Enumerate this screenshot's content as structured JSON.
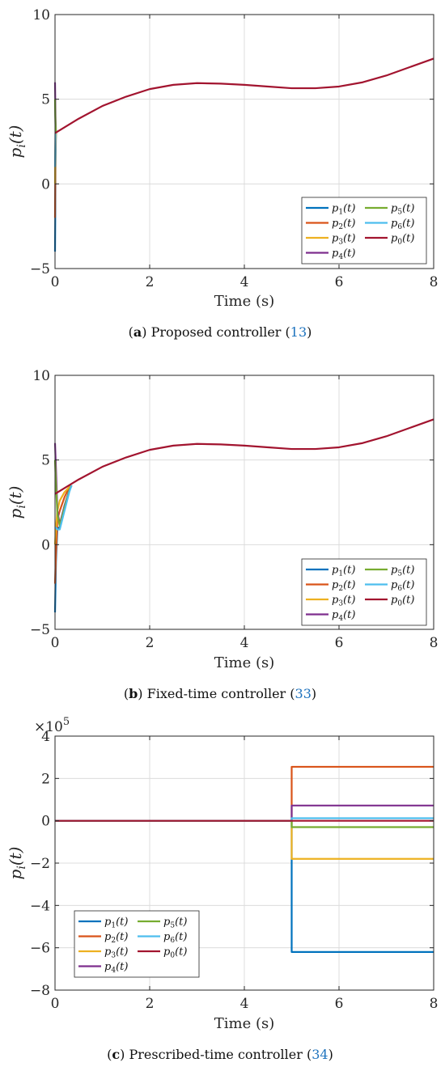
{
  "chart_data": [
    {
      "type": "line",
      "panel_label": "a",
      "caption": "Proposed controller",
      "caption_ref": "13",
      "xlabel": "Time (s)",
      "ylabel": "p_i(t)",
      "xlim": [
        0,
        8
      ],
      "ylim": [
        -5,
        10
      ],
      "xticks": [
        "0",
        "2",
        "4",
        "6",
        "8"
      ],
      "yticks": [
        "−5",
        "0",
        "5",
        "10"
      ],
      "y_exponent": "",
      "grid": true,
      "legend_position": "bottom-right",
      "series": [
        {
          "name": "p1(t)",
          "sub": "1",
          "color": "#0072BD",
          "x": [
            0,
            0.005,
            0.01,
            0.02
          ],
          "y": [
            -4,
            -2,
            1,
            3.05
          ]
        },
        {
          "name": "p2(t)",
          "sub": "2",
          "color": "#D95319",
          "x": [
            0,
            0.005,
            0.01,
            0.02
          ],
          "y": [
            -2,
            0,
            2,
            3.05
          ]
        },
        {
          "name": "p3(t)",
          "sub": "3",
          "color": "#EDB120",
          "x": [
            0,
            0.005,
            0.01,
            0.02
          ],
          "y": [
            0,
            1.5,
            2.5,
            3.05
          ]
        },
        {
          "name": "p4(t)",
          "sub": "4",
          "color": "#7E2F8E",
          "x": [
            0,
            0.005,
            0.01,
            0.02
          ],
          "y": [
            6,
            5,
            4,
            3.05
          ]
        },
        {
          "name": "p5(t)",
          "sub": "5",
          "color": "#77AC30",
          "x": [
            0,
            0.005,
            0.01,
            0.02
          ],
          "y": [
            5,
            4,
            3.5,
            3.05
          ]
        },
        {
          "name": "p6(t)",
          "sub": "6",
          "color": "#4DBEEE",
          "x": [
            0,
            0.005,
            0.01,
            0.02
          ],
          "y": [
            1,
            2,
            3,
            3.05
          ]
        },
        {
          "name": "p0(t)",
          "sub": "0",
          "color": "#A2142F",
          "x": [
            0,
            0.5,
            1,
            1.5,
            2,
            2.5,
            3,
            3.5,
            4,
            4.5,
            5,
            5.5,
            6,
            6.5,
            7,
            7.5,
            8
          ],
          "y": [
            3.0,
            3.85,
            4.6,
            5.15,
            5.6,
            5.85,
            5.95,
            5.92,
            5.85,
            5.75,
            5.65,
            5.65,
            5.75,
            6.0,
            6.4,
            6.9,
            7.4
          ]
        }
      ]
    },
    {
      "type": "line",
      "panel_label": "b",
      "caption": "Fixed-time controller",
      "caption_ref": "33",
      "xlabel": "Time (s)",
      "ylabel": "p_i(t)",
      "xlim": [
        0,
        8
      ],
      "ylim": [
        -5,
        10
      ],
      "xticks": [
        "0",
        "2",
        "4",
        "6",
        "8"
      ],
      "yticks": [
        "−5",
        "0",
        "5",
        "10"
      ],
      "y_exponent": "",
      "grid": true,
      "legend_position": "bottom-right",
      "series": [
        {
          "name": "p1(t)",
          "sub": "1",
          "color": "#0072BD",
          "x": [
            0,
            0.02,
            0.05,
            0.1,
            0.2,
            0.3,
            0.35
          ],
          "y": [
            -4,
            -1,
            1.0,
            1.0,
            2.2,
            3.2,
            3.5
          ]
        },
        {
          "name": "p2(t)",
          "sub": "2",
          "color": "#D95319",
          "x": [
            0,
            0.02,
            0.05,
            0.1,
            0.2,
            0.3,
            0.35
          ],
          "y": [
            -2.3,
            -0.5,
            1.5,
            2.0,
            2.8,
            3.4,
            3.5
          ]
        },
        {
          "name": "p3(t)",
          "sub": "3",
          "color": "#EDB120",
          "x": [
            0,
            0.02,
            0.05,
            0.1,
            0.2,
            0.3,
            0.35
          ],
          "y": [
            0,
            1.0,
            2.0,
            2.6,
            3.1,
            3.4,
            3.5
          ]
        },
        {
          "name": "p4(t)",
          "sub": "4",
          "color": "#7E2F8E",
          "x": [
            0,
            0.02,
            0.05,
            0.1,
            0.2,
            0.3,
            0.35
          ],
          "y": [
            6,
            4.5,
            2.0,
            1.2,
            2.3,
            3.2,
            3.5
          ]
        },
        {
          "name": "p5(t)",
          "sub": "5",
          "color": "#77AC30",
          "x": [
            0,
            0.02,
            0.05,
            0.1,
            0.2,
            0.3,
            0.35
          ],
          "y": [
            5,
            3.5,
            1.8,
            1.1,
            2.2,
            3.2,
            3.5
          ]
        },
        {
          "name": "p6(t)",
          "sub": "6",
          "color": "#4DBEEE",
          "x": [
            0,
            0.02,
            0.05,
            0.1,
            0.2,
            0.3,
            0.35
          ],
          "y": [
            1,
            1.0,
            0.9,
            0.9,
            2.0,
            3.1,
            3.5
          ]
        },
        {
          "name": "p0(t)",
          "sub": "0",
          "color": "#A2142F",
          "x": [
            0,
            0.5,
            1,
            1.5,
            2,
            2.5,
            3,
            3.5,
            4,
            4.5,
            5,
            5.5,
            6,
            6.5,
            7,
            7.5,
            8
          ],
          "y": [
            3.0,
            3.85,
            4.6,
            5.15,
            5.6,
            5.85,
            5.95,
            5.92,
            5.85,
            5.75,
            5.65,
            5.65,
            5.75,
            6.0,
            6.4,
            6.9,
            7.4
          ]
        }
      ]
    },
    {
      "type": "line",
      "panel_label": "c",
      "caption": "Prescribed-time controller",
      "caption_ref": "34",
      "xlabel": "Time (s)",
      "ylabel": "p_i(t)",
      "xlim": [
        0,
        8
      ],
      "ylim": [
        -8,
        4
      ],
      "xticks": [
        "0",
        "2",
        "4",
        "6",
        "8"
      ],
      "yticks": [
        "−8",
        "−6",
        "−4",
        "−2",
        "0",
        "2",
        "4"
      ],
      "y_exponent": "5",
      "grid": true,
      "legend_position": "bottom-left",
      "series": [
        {
          "name": "p1(t)",
          "sub": "1",
          "color": "#0072BD",
          "x": [
            0,
            5,
            5,
            8
          ],
          "y": [
            0,
            0,
            -6.2,
            -6.2
          ]
        },
        {
          "name": "p2(t)",
          "sub": "2",
          "color": "#D95319",
          "x": [
            0,
            5,
            5,
            8
          ],
          "y": [
            0,
            0,
            2.55,
            2.55
          ]
        },
        {
          "name": "p3(t)",
          "sub": "3",
          "color": "#EDB120",
          "x": [
            0,
            5,
            5,
            8
          ],
          "y": [
            0,
            0,
            -1.8,
            -1.8
          ]
        },
        {
          "name": "p4(t)",
          "sub": "4",
          "color": "#7E2F8E",
          "x": [
            0,
            5,
            5,
            8
          ],
          "y": [
            0,
            0,
            0.72,
            0.72
          ]
        },
        {
          "name": "p5(t)",
          "sub": "5",
          "color": "#77AC30",
          "x": [
            0,
            5,
            5,
            8
          ],
          "y": [
            0,
            0,
            -0.3,
            -0.3
          ]
        },
        {
          "name": "p6(t)",
          "sub": "6",
          "color": "#4DBEEE",
          "x": [
            0,
            5,
            5,
            8
          ],
          "y": [
            0,
            0,
            0.12,
            0.12
          ]
        },
        {
          "name": "p0(t)",
          "sub": "0",
          "color": "#A2142F",
          "x": [
            0,
            8
          ],
          "y": [
            0,
            0
          ]
        }
      ]
    }
  ]
}
